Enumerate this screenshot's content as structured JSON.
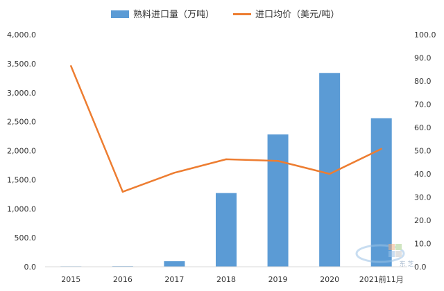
{
  "chart_data": {
    "type": "bar",
    "categories": [
      "2015",
      "2016",
      "2017",
      "2018",
      "2019",
      "2020",
      "2021前11月"
    ],
    "series": [
      {
        "name": "熟料进口量（万吨）",
        "type": "bar",
        "axis": "left",
        "color": "#5b9bd5",
        "values": [
          8,
          10,
          95,
          1270,
          2280,
          3340,
          2560
        ]
      },
      {
        "name": "进口均价（美元/吨）",
        "type": "line",
        "axis": "right",
        "color": "#ed7d31",
        "values": [
          86.5,
          32.3,
          40.5,
          46.3,
          45.6,
          40.0,
          50.8
        ]
      }
    ],
    "y_left": {
      "lim": [
        0,
        4000
      ],
      "ticks": [
        0,
        500,
        1000,
        1500,
        2000,
        2500,
        3000,
        3500,
        4000
      ],
      "tick_labels": [
        "0.0",
        "500.0",
        "1,000.0",
        "1,500.0",
        "2,000.0",
        "2,500.0",
        "3,000.0",
        "3,500.0",
        "4,000.0"
      ]
    },
    "y_right": {
      "lim": [
        0,
        100
      ],
      "ticks": [
        0,
        10,
        20,
        30,
        40,
        50,
        60,
        70,
        80,
        90,
        100
      ],
      "tick_labels": [
        "0.0",
        "10.0",
        "20.0",
        "30.0",
        "40.0",
        "50.0",
        "60.0",
        "70.0",
        "80.0",
        "90.0",
        "100.0"
      ]
    },
    "grid": false,
    "legend": "top-center"
  },
  "watermark": {
    "icon": "logo-icon",
    "text": "东 芝"
  }
}
